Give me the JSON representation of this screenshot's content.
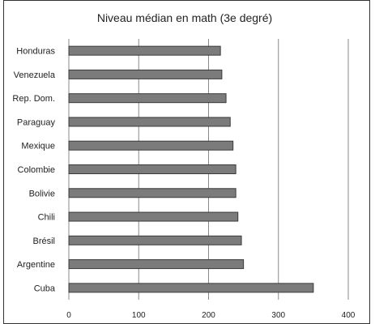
{
  "chart_data": {
    "type": "bar",
    "orientation": "horizontal",
    "title": "Niveau médian en math (3e degré)",
    "xlabel": "",
    "ylabel": "",
    "categories": [
      "Honduras",
      "Venezuela",
      "Rep. Dom.",
      "Paraguay",
      "Mexique",
      "Colombie",
      "Bolivie",
      "Chili",
      "Brésil",
      "Argentine",
      "Cuba"
    ],
    "values": [
      217,
      219,
      225,
      231,
      235,
      239,
      239,
      242,
      247,
      250,
      350
    ],
    "xlim": [
      0,
      400
    ],
    "xticks": [
      0,
      100,
      200,
      300,
      400
    ],
    "grid": true,
    "bar_color": "#7b7b7b"
  }
}
